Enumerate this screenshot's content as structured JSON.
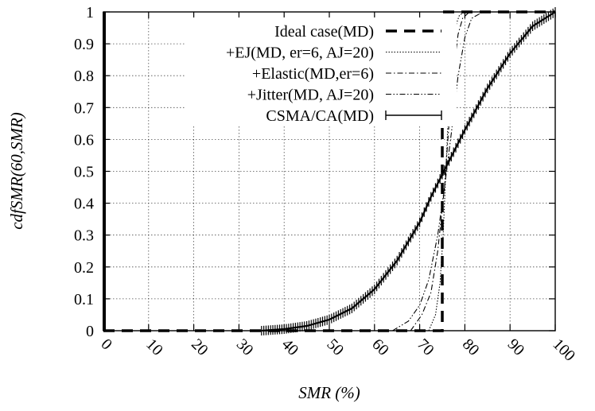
{
  "chart_data": {
    "type": "line",
    "xlabel": "SMR (%)",
    "ylabel": "cdfSMR(60,SMR)",
    "xlim": [
      0,
      100
    ],
    "ylim": [
      0,
      1
    ],
    "xticks": [
      "0",
      "10",
      "20",
      "30",
      "40",
      "50",
      "60",
      "70",
      "80",
      "90",
      "100"
    ],
    "yticks": [
      "0",
      "0.1",
      "0.2",
      "0.3",
      "0.4",
      "0.5",
      "0.6",
      "0.7",
      "0.8",
      "0.9",
      "1"
    ],
    "grid": true,
    "legend_position": "top-left",
    "series": [
      {
        "name": "Ideal case(MD)",
        "style": "dashed-thick",
        "x": [
          0,
          0,
          75,
          75,
          100
        ],
        "y": [
          0,
          0,
          0,
          1,
          1
        ]
      },
      {
        "name": "+EJ(MD, er=6, AJ=20)",
        "style": "dotted",
        "x": [
          72.0,
          73.5,
          74.5,
          75.2,
          75.8,
          76.4,
          77.0,
          77.8,
          78.8,
          80.0
        ],
        "y": [
          0.0,
          0.05,
          0.15,
          0.3,
          0.5,
          0.7,
          0.85,
          0.95,
          0.99,
          1.0
        ]
      },
      {
        "name": "+Elastic(MD,er=6)",
        "style": "dash-dot",
        "x": [
          68.0,
          70.5,
          72.5,
          74.0,
          75.5,
          76.5,
          77.5,
          78.5,
          79.5,
          81.0
        ],
        "y": [
          0.0,
          0.05,
          0.12,
          0.25,
          0.45,
          0.65,
          0.82,
          0.93,
          0.98,
          1.0
        ]
      },
      {
        "name": "+Jitter(MD, AJ=20)",
        "style": "dash-dot-dot",
        "x": [
          64.0,
          67.5,
          70.0,
          72.0,
          74.0,
          75.5,
          77.0,
          78.5,
          80.0,
          81.5,
          84.0
        ],
        "y": [
          0.0,
          0.03,
          0.08,
          0.16,
          0.3,
          0.45,
          0.62,
          0.8,
          0.92,
          0.98,
          1.0
        ]
      },
      {
        "name": "CSMA/CA(MD)",
        "style": "solid-errorbars",
        "x": [
          35,
          40,
          45,
          50,
          55,
          60,
          65,
          70,
          72.5,
          75,
          77.5,
          80,
          85,
          90,
          95,
          100
        ],
        "y": [
          0.0,
          0.005,
          0.015,
          0.035,
          0.07,
          0.13,
          0.22,
          0.34,
          0.42,
          0.49,
          0.56,
          0.63,
          0.76,
          0.87,
          0.955,
          1.0
        ]
      }
    ]
  }
}
